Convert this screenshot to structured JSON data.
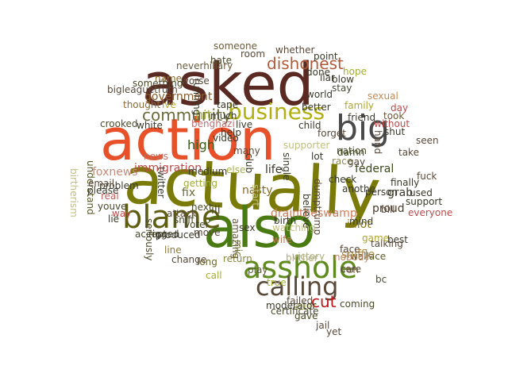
{
  "words": [
    {
      "text": "actually",
      "color": "#7a7a08",
      "vertical": false
    },
    {
      "text": "action",
      "color": "#e8502a",
      "vertical": false
    },
    {
      "text": "asked",
      "color": "#5a2a22",
      "vertical": false
    },
    {
      "text": "also",
      "color": "#4a7a12",
      "vertical": false
    },
    {
      "text": "asshole",
      "color": "#5e8a1e",
      "vertical": false
    },
    {
      "text": "blame",
      "color": "#5e5e12",
      "vertical": false
    },
    {
      "text": "big",
      "color": "#4a4a4a",
      "vertical": false
    },
    {
      "text": "business",
      "color": "#b0b010",
      "vertical": false
    },
    {
      "text": "calling",
      "color": "#5a4a3a",
      "vertical": false
    },
    {
      "text": "cut",
      "color": "#c0181a",
      "vertical": false
    },
    {
      "text": "community",
      "color": "#6b6b3a",
      "vertical": false
    },
    {
      "text": "dishonest",
      "color": "#b05a3a",
      "vertical": false
    },
    {
      "text": "draintheswamp",
      "color": "#d07a5a",
      "vertical": false
    },
    {
      "text": "immigration",
      "color": "#c04a4a",
      "vertical": false
    },
    {
      "text": "government",
      "color": "#8a5a2a",
      "vertical": false
    },
    {
      "text": "foxnews",
      "color": "#c88a7a",
      "vertical": false
    },
    {
      "text": "high",
      "color": "#3a5a1a",
      "vertical": false
    },
    {
      "text": "hit",
      "color": "#a8b048",
      "vertical": false
    },
    {
      "text": "fix",
      "color": "#6a6a3a",
      "vertical": false
    },
    {
      "text": "ill",
      "color": "#4a4a2a",
      "vertical": false
    },
    {
      "text": "life",
      "color": "#3a3a2a",
      "vertical": false
    },
    {
      "text": "nasty",
      "color": "#8a6a2a",
      "vertical": false
    },
    {
      "text": "federal",
      "color": "#3a4a1a",
      "vertical": false
    },
    {
      "text": "grab",
      "color": "#3a3a2a",
      "vertical": false
    },
    {
      "text": "idiot",
      "color": "#8a7a12",
      "vertical": false
    },
    {
      "text": "proud",
      "color": "#4a3a2a",
      "vertical": false
    },
    {
      "text": "sniffle",
      "color": "#b08a3a",
      "vertical": false
    },
    {
      "text": "wallace",
      "color": "#5a5a2a",
      "vertical": false
    },
    {
      "text": "produced",
      "color": "#3a3a2a",
      "vertical": false
    },
    {
      "text": "problem",
      "color": "#3a3a2a",
      "vertical": false
    },
    {
      "text": "real",
      "color": "#c06060",
      "vertical": false
    },
    {
      "text": "long",
      "color": "#6a6a2a",
      "vertical": false
    },
    {
      "text": "return",
      "color": "#8a8a3a",
      "vertical": false
    },
    {
      "text": "wife",
      "color": "#c07a5a",
      "vertical": false
    },
    {
      "text": "someone",
      "color": "#6a5a3a",
      "vertical": false
    },
    {
      "text": "whether",
      "color": "#5a4a3a",
      "vertical": false
    },
    {
      "text": "neverhillary",
      "color": "#6a5a3a",
      "vertical": false
    },
    {
      "text": "family",
      "color": "#b0a830",
      "vertical": false
    },
    {
      "text": "sexual",
      "color": "#c08a5a",
      "vertical": false
    },
    {
      "text": "stay",
      "color": "#4a4a3a",
      "vertical": false
    },
    {
      "text": "took",
      "color": "#6a5a3a",
      "vertical": false
    },
    {
      "text": "damn",
      "color": "#3a4a1a",
      "vertical": false
    },
    {
      "text": "nation",
      "color": "#4a4a2a",
      "vertical": false
    },
    {
      "text": "talking",
      "color": "#5a4a3a",
      "vertical": false
    },
    {
      "text": "game",
      "color": "#b0a830",
      "vertical": false
    },
    {
      "text": "mind",
      "color": "#3a3a2a",
      "vertical": false
    },
    {
      "text": "bc",
      "color": "#4a4a3a",
      "vertical": false
    },
    {
      "text": "shut",
      "color": "#3a3a2a",
      "vertical": false
    },
    {
      "text": "hand",
      "color": "#5a4a3a",
      "vertical": true
    },
    {
      "text": "else",
      "color": "#a8b048",
      "vertical": false
    },
    {
      "text": "amazing",
      "color": "#6a5a3a",
      "vertical": true
    },
    {
      "text": "name",
      "color": "#8a6a2a",
      "vertical": false
    },
    {
      "text": "something",
      "color": "#4a4a2a",
      "vertical": false
    },
    {
      "text": "thought",
      "color": "#8a6a3a",
      "vertical": false
    },
    {
      "text": "crooked",
      "color": "#4a4a2a",
      "vertical": false
    },
    {
      "text": "white",
      "color": "#3a3a2a",
      "vertical": false
    },
    {
      "text": "understand",
      "color": "#5a5a2a",
      "vertical": true
    },
    {
      "text": "youve",
      "color": "#4a4a2a",
      "vertical": false
    },
    {
      "text": "way",
      "color": "#c04a4a",
      "vertical": false
    },
    {
      "text": "twitter",
      "color": "#3a3a2a",
      "vertical": true
    },
    {
      "text": "line",
      "color": "#8a7a3a",
      "vertical": false
    },
    {
      "text": "sex",
      "color": "#3a3a2a",
      "vertical": false
    },
    {
      "text": "mic",
      "color": "#7a7a3a",
      "vertical": true
    },
    {
      "text": "video",
      "color": "#3a3a2a",
      "vertical": false
    },
    {
      "text": "club",
      "color": "#3a3a2a",
      "vertical": true
    },
    {
      "text": "believe",
      "color": "#3a3a2a",
      "vertical": true
    },
    {
      "text": "lot",
      "color": "#3a3a2a",
      "vertical": false
    },
    {
      "text": "forget",
      "color": "#5a4a3a",
      "vertical": false
    },
    {
      "text": "child",
      "color": "#3a3a2a",
      "vertical": false
    },
    {
      "text": "check",
      "color": "#3a3a2a",
      "vertical": false
    },
    {
      "text": "race",
      "color": "#8a8a5a",
      "vertical": false
    },
    {
      "text": "anothe",
      "color": "#3a3a2a",
      "vertical": false
    },
    {
      "text": "person",
      "color": "#3a3a2a",
      "vertical": false
    },
    {
      "text": "finally",
      "color": "#3a3a2a",
      "vertical": false
    },
    {
      "text": "everyone",
      "color": "#c04a4a",
      "vertical": false
    },
    {
      "text": "best",
      "color": "#3a3a2a",
      "vertical": false
    },
    {
      "text": "face",
      "color": "#5a4a3a",
      "vertical": false
    },
    {
      "text": "nobody",
      "color": "#c08a6a",
      "vertical": false
    },
    {
      "text": "victory",
      "color": "#b0b080",
      "vertical": false
    },
    {
      "text": "birther",
      "color": "#b0b080",
      "vertical": false
    },
    {
      "text": "play",
      "color": "#5a5a3a",
      "vertical": false
    },
    {
      "text": "true",
      "color": "#a0b030",
      "vertical": false
    },
    {
      "text": "failed",
      "color": "#5a4a3a",
      "vertical": false
    },
    {
      "text": "ever",
      "color": "#c0c070",
      "vertical": false
    },
    {
      "text": "coming",
      "color": "#4a4a2a",
      "vertical": false
    },
    {
      "text": "gave",
      "color": "#4a4a2a",
      "vertical": false
    },
    {
      "text": "jail",
      "color": "#5a4a3a",
      "vertical": false
    },
    {
      "text": "yet",
      "color": "#5a4a3a",
      "vertical": false
    },
    {
      "text": "change",
      "color": "#5a4a3a",
      "vertical": false
    },
    {
      "text": "call",
      "color": "#a0b030",
      "vertical": false
    },
    {
      "text": "accept",
      "color": "#4a4a2a",
      "vertical": false
    },
    {
      "text": "attack",
      "color": "#5a4a3a",
      "vertical": false
    },
    {
      "text": "rigged",
      "color": "#3a3a2a",
      "vertical": false
    },
    {
      "text": "sniff",
      "color": "#4a4a2a",
      "vertical": false
    },
    {
      "text": "moderator",
      "color": "#3a3a2a",
      "vertical": false
    },
    {
      "text": "certificate",
      "color": "#4a4a2a",
      "vertical": false
    },
    {
      "text": "run",
      "color": "#8a7a5a",
      "vertical": false
    },
    {
      "text": "used",
      "color": "#3a3a2a",
      "vertical": false
    },
    {
      "text": "support",
      "color": "#3a3a2a",
      "vertical": false
    },
    {
      "text": "please",
      "color": "#3a3a2a",
      "vertical": false
    },
    {
      "text": "email",
      "color": "#5a4a3a",
      "vertical": false
    },
    {
      "text": "birtherism",
      "color": "#c0c080",
      "vertical": true
    },
    {
      "text": "news",
      "color": "#c07060",
      "vertical": false
    },
    {
      "text": "voter",
      "color": "#4a4a2a",
      "vertical": false
    },
    {
      "text": "move",
      "color": "#5a4a3a",
      "vertical": false
    },
    {
      "text": "next",
      "color": "#4a4a2a",
      "vertical": false
    },
    {
      "text": "seriously",
      "color": "#4a4a2a",
      "vertical": true
    },
    {
      "text": "start",
      "color": "#c0c080",
      "vertical": true
    },
    {
      "text": "dumptrump",
      "color": "#5a4a3a",
      "vertical": true
    },
    {
      "text": "single",
      "color": "#3a3a2a",
      "vertical": true
    },
    {
      "text": "blow",
      "color": "#3a3a2a",
      "vertical": false
    },
    {
      "text": "hope",
      "color": "#a0b030",
      "vertical": false
    },
    {
      "text": "without",
      "color": "#c04a4a",
      "vertical": false
    },
    {
      "text": "friend",
      "color": "#3a3a2a",
      "vertical": false
    },
    {
      "text": "world",
      "color": "#3a3a2a",
      "vertical": false
    },
    {
      "text": "running",
      "color": "#3a3a2a",
      "vertical": true
    },
    {
      "text": "hate",
      "color": "#4a4a2a",
      "vertical": false
    },
    {
      "text": "worse",
      "color": "#5a4a3a",
      "vertical": false
    },
    {
      "text": "benghazi",
      "color": "#c07070",
      "vertical": false
    },
    {
      "text": "tape",
      "color": "#3a3a2a",
      "vertical": false
    },
    {
      "text": "live",
      "color": "#3a3a2a",
      "vertical": false
    },
    {
      "text": "much",
      "color": "#3a3a2a",
      "vertical": false
    },
    {
      "text": "help",
      "color": "#3a3a2a",
      "vertical": false
    },
    {
      "text": "many",
      "color": "#5a4a3a",
      "vertical": false
    },
    {
      "text": "medium",
      "color": "#3a3a2a",
      "vertical": false
    },
    {
      "text": "getting",
      "color": "#a0b030",
      "vertical": false
    },
    {
      "text": "room",
      "color": "#5a4a3a",
      "vertical": false
    },
    {
      "text": "point",
      "color": "#3a3a2a",
      "vertical": false
    },
    {
      "text": "done",
      "color": "#3a3a2a",
      "vertical": false
    },
    {
      "text": "liar",
      "color": "#3a3a2a",
      "vertical": false
    },
    {
      "text": "better",
      "color": "#3a3a2a",
      "vertical": false
    },
    {
      "text": "bigleaguetruth",
      "color": "#5a4a3a",
      "vertical": false
    },
    {
      "text": "ive",
      "color": "#b0a830",
      "vertical": false
    },
    {
      "text": "seen",
      "color": "#5a4a3a",
      "vertical": false
    },
    {
      "text": "day",
      "color": "#c04a4a",
      "vertical": false
    },
    {
      "text": "gay",
      "color": "#5a4a3a",
      "vertical": false
    },
    {
      "text": "take",
      "color": "#5a4a3a",
      "vertical": false
    },
    {
      "text": "fuck",
      "color": "#5a4a3a",
      "vertical": false
    },
    {
      "text": "bill",
      "color": "#5a4a3a",
      "vertical": false
    },
    {
      "text": "supporter",
      "color": "#c0c080",
      "vertical": false
    },
    {
      "text": "lie",
      "color": "#3a3a2a",
      "vertical": false
    },
    {
      "text": "birth",
      "color": "#3a3a2a",
      "vertical": false
    },
    {
      "text": "care",
      "color": "#5a4a3a",
      "vertical": false
    },
    {
      "text": "watching",
      "color": "#c0c080",
      "vertical": false
    }
  ]
}
